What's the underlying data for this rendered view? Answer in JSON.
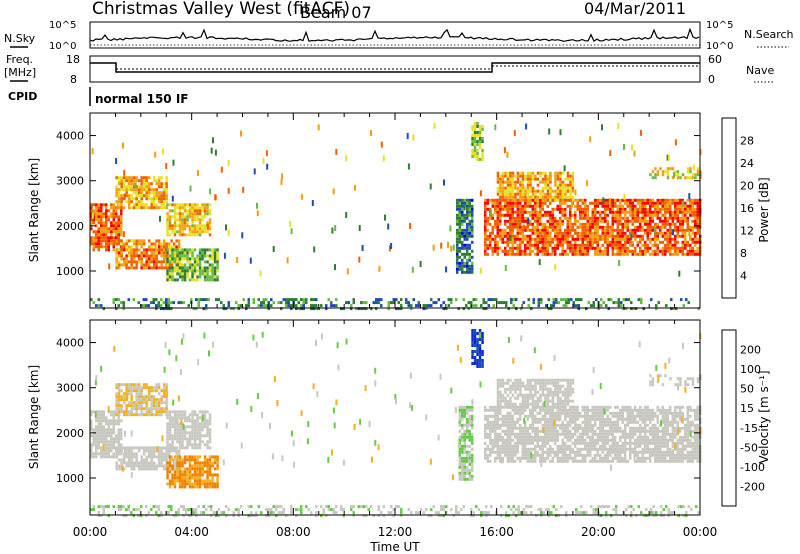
{
  "header": {
    "station": "Christmas Valley West (fitACF)",
    "beam": "Beam 07",
    "date": "04/Mar/2011"
  },
  "strips": {
    "nsky_label": "N.Sky",
    "nsky_ticks": [
      "10^5",
      "10^0"
    ],
    "nsearch_label": "N.Search",
    "freq_label": "Freq.",
    "freq_unit": "[MHz]",
    "freq_ticks": [
      "18",
      "8"
    ],
    "nave_label": "Nave",
    "nave_ticks": [
      "60",
      "0"
    ],
    "cpid_label": "CPID",
    "cpid_value": "normal 150 IF",
    "nsky_right_ticks": [
      "10^5",
      "10^0"
    ]
  },
  "colors": {
    "power": [
      "#0000ff",
      "#1e4bb4",
      "#2e7d32",
      "#66bb44",
      "#e8e020",
      "#f0a010",
      "#f06000",
      "#ff0000"
    ],
    "velocity": [
      "#ff0000",
      "#ee3a00",
      "#f08000",
      "#f0b020",
      "#c8c8c0",
      "#66cc44",
      "#2e7d32",
      "#1e4bb4",
      "#0a2ad8"
    ],
    "ground_scatter": "#c0c0c0"
  },
  "chart_data": [
    {
      "type": "heatmap",
      "panel": "power",
      "xlabel": "",
      "ylabel": "Slant Range [km]",
      "y_ticks": [
        "1000",
        "2000",
        "3000",
        "4000"
      ],
      "y_tick_values": [
        1000,
        2000,
        3000,
        4000
      ],
      "ylim": [
        180,
        4500
      ],
      "xlim": [
        0,
        24
      ],
      "colorbar": {
        "label": "Power [dB]",
        "ticks": [
          "4",
          "8",
          "12",
          "16",
          "20",
          "24",
          "28"
        ],
        "range": [
          0,
          32
        ]
      },
      "regions": [
        {
          "t": [
            0.0,
            1.2
          ],
          "r": [
            1500,
            2500
          ],
          "v": 26
        },
        {
          "t": [
            1.0,
            3.5
          ],
          "r": [
            1100,
            1700
          ],
          "v": 24
        },
        {
          "t": [
            1.0,
            3.0
          ],
          "r": [
            2400,
            3100
          ],
          "v": 22
        },
        {
          "t": [
            3.0,
            4.7
          ],
          "r": [
            1800,
            2500
          ],
          "v": 20
        },
        {
          "t": [
            3.0,
            5.0
          ],
          "r": [
            800,
            1500
          ],
          "v": 14
        },
        {
          "t": [
            14.4,
            15.0
          ],
          "r": [
            1000,
            2600
          ],
          "v": 8
        },
        {
          "t": [
            15.0,
            15.4
          ],
          "r": [
            3500,
            4300
          ],
          "v": 14
        },
        {
          "t": [
            15.5,
            24.0
          ],
          "r": [
            1400,
            2600
          ],
          "v": 26
        },
        {
          "t": [
            16.0,
            19.0
          ],
          "r": [
            2600,
            3200
          ],
          "v": 22
        },
        {
          "t": [
            22.0,
            24.0
          ],
          "r": [
            3100,
            3300
          ],
          "v": 18
        },
        {
          "t": [
            0.0,
            24.0
          ],
          "r": [
            200,
            400
          ],
          "v": 10
        }
      ]
    },
    {
      "type": "heatmap",
      "panel": "velocity",
      "xlabel": "Time UT",
      "ylabel": "Slant Range [km]",
      "x_ticks": [
        "00:00",
        "04:00",
        "08:00",
        "12:00",
        "16:00",
        "20:00",
        "00:00"
      ],
      "x_tick_values": [
        0,
        4,
        8,
        12,
        16,
        20,
        24
      ],
      "y_ticks": [
        "1000",
        "2000",
        "3000",
        "4000"
      ],
      "y_tick_values": [
        1000,
        2000,
        3000,
        4000
      ],
      "ylim": [
        180,
        4500
      ],
      "xlim": [
        0,
        24
      ],
      "colorbar": {
        "label": "Velocity [m s⁻¹]",
        "ticks": [
          "-200",
          "-100",
          "-50",
          "-15",
          "15",
          "50",
          "100",
          "200"
        ],
        "range": [
          -250,
          250
        ]
      },
      "regions": [
        {
          "t": [
            0.0,
            1.2
          ],
          "r": [
            1500,
            2500
          ],
          "v": 0
        },
        {
          "t": [
            1.0,
            3.5
          ],
          "r": [
            1200,
            1700
          ],
          "v": 0
        },
        {
          "t": [
            1.0,
            3.0
          ],
          "r": [
            2400,
            3100
          ],
          "v": -30
        },
        {
          "t": [
            3.0,
            4.7
          ],
          "r": [
            1700,
            2500
          ],
          "v": 0
        },
        {
          "t": [
            3.0,
            5.0
          ],
          "r": [
            800,
            1500
          ],
          "v": -90
        },
        {
          "t": [
            14.5,
            15.0
          ],
          "r": [
            1000,
            2600
          ],
          "v": 30
        },
        {
          "t": [
            15.0,
            15.4
          ],
          "r": [
            3500,
            4300
          ],
          "v": 200
        },
        {
          "t": [
            15.5,
            24.0
          ],
          "r": [
            1400,
            2600
          ],
          "v": 0
        },
        {
          "t": [
            16.0,
            19.0
          ],
          "r": [
            2600,
            3200
          ],
          "v": 0
        },
        {
          "t": [
            22.0,
            24.0
          ],
          "r": [
            3100,
            3300
          ],
          "v": 0
        },
        {
          "t": [
            0.0,
            24.0
          ],
          "r": [
            200,
            400
          ],
          "v": 20
        }
      ]
    }
  ]
}
